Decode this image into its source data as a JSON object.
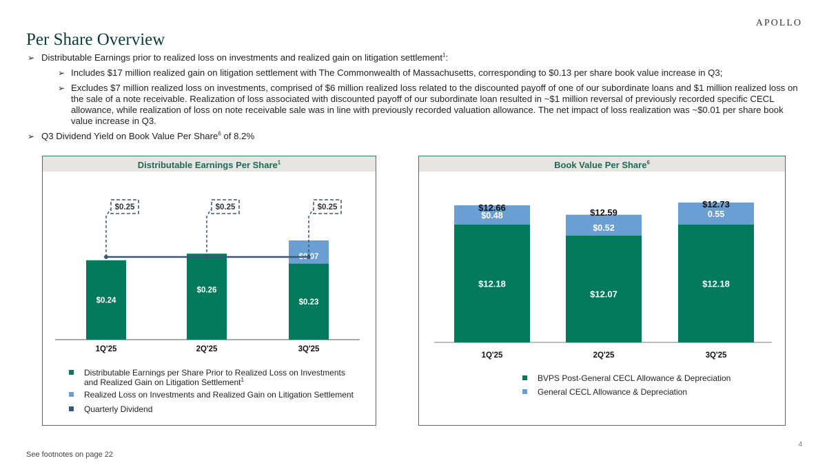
{
  "header": {
    "logo": "APOLLO",
    "title": "Per Share Overview"
  },
  "bullets": {
    "b1_text": "Distributable Earnings prior to realized loss on investments and realized gain on litigation settlement",
    "b1_sup": "1",
    "b1_end": ":",
    "b2_text": "Includes $17 million realized gain on litigation settlement with The Commonwealth of Massachusetts, corresponding to $0.13 per share book value increase in Q3;",
    "b3_text": "Excludes $7 million realized loss on investments, comprised of $6 million realized loss related to the discounted payoff of one of our subordinate loans and $1 million realized loss on the sale of a note receivable. Realization of loss associated with discounted payoff of our subordinate loan resulted in ~$1 million reversal of previously recorded specific CECL allowance, while realization of loss on note receivable sale was in line with previously recorded valuation allowance. The net impact of loss realization was ~$0.01 per share book value increase in Q3.",
    "b4_pre": "Q3 Dividend Yield on Book Value Per Share",
    "b4_sup": "6",
    "b4_post": " of 8.2%"
  },
  "arrow_glyph": "➢",
  "colors": {
    "dark_green": "#047a5c",
    "light_blue": "#6a9fd4",
    "navy": "#3b5575",
    "border": "#2e7d64",
    "header_bg": "#e7e5e2"
  },
  "chart_data": [
    {
      "type": "bar",
      "title": "Distributable Earnings Per Share",
      "title_sup": "1",
      "categories": [
        "1Q'25",
        "2Q'25",
        "3Q'25"
      ],
      "series": [
        {
          "name": "Distributable Earnings per Share Prior to Realized Loss on Investments and Realized Gain on Litigation Settlement",
          "values": [
            0.24,
            0.26,
            0.23
          ],
          "labels": [
            "$0.24",
            "$0.26",
            "$0.23"
          ],
          "color": "#047a5c"
        },
        {
          "name": "Realized Loss on Investments and Realized Gain on Litigation Settlement",
          "values": [
            0,
            0,
            0.07
          ],
          "labels": [
            "",
            "",
            "$0.07"
          ],
          "color": "#6a9fd4"
        },
        {
          "name": "Quarterly Dividend",
          "values": [
            0.25,
            0.25,
            0.25
          ],
          "labels": [
            "$0.25",
            "$0.25",
            "$0.25"
          ],
          "color": "#3b5575",
          "style": "line"
        }
      ],
      "legend_sup": "1",
      "ylim": [
        0,
        0.42
      ]
    },
    {
      "type": "bar",
      "title": "Book Value Per Share",
      "title_sup": "6",
      "categories": [
        "1Q'25",
        "2Q'25",
        "3Q'25"
      ],
      "series": [
        {
          "name": "BVPS Post-General CECL Allowance & Depreciation",
          "values": [
            12.18,
            12.07,
            12.18
          ],
          "labels": [
            "$12.18",
            "$12.07",
            "$12.18"
          ],
          "color": "#047a5c"
        },
        {
          "name": "General CECL Allowance & Depreciation",
          "values": [
            0.48,
            0.52,
            0.55
          ],
          "labels": [
            "$0.48",
            "$0.52",
            "0.55"
          ],
          "color": "#6a9fd4"
        }
      ],
      "totals": [
        "$12.66",
        "$12.59",
        "$12.73"
      ],
      "ylim": [
        0,
        14.5
      ],
      "axis_broken": true
    }
  ],
  "footer": {
    "note": "See footnotes on page 22",
    "page": "4"
  }
}
